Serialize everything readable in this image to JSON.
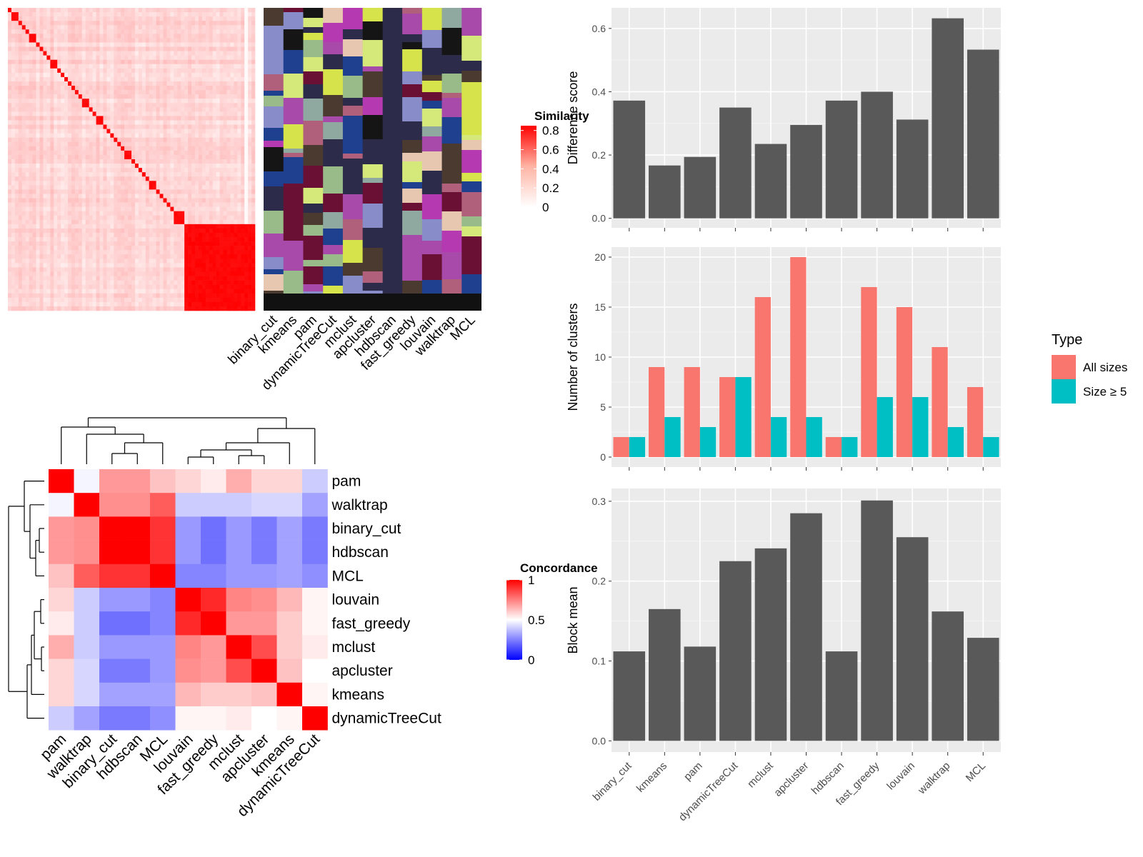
{
  "methods_order": [
    "binary_cut",
    "kmeans",
    "pam",
    "dynamicTreeCut",
    "mclust",
    "apcluster",
    "hdbscan",
    "fast_greedy",
    "louvain",
    "walktrap",
    "MCL"
  ],
  "similarity_heatmap": {
    "legend_title": "Similarity",
    "legend_ticks": [
      0.8,
      0.6,
      0.4,
      0.2,
      0
    ],
    "legend_range": [
      0,
      0.85
    ],
    "n": 70,
    "block_sizes": [
      1,
      2,
      1,
      1,
      1,
      2,
      1,
      1,
      1,
      1,
      2,
      1,
      1,
      1,
      1,
      1,
      1,
      1,
      2,
      1,
      1,
      2,
      1,
      1,
      1,
      1,
      1,
      1,
      2,
      1,
      1,
      1,
      1,
      1,
      2,
      1,
      1,
      1,
      1,
      1,
      3
    ],
    "colors": {
      "low": "#ffffff",
      "high": "#ff0000"
    }
  },
  "cluster_assignment": {
    "columns": [
      "binary_cut",
      "kmeans",
      "pam",
      "dynamicTreeCut",
      "mclust",
      "apcluster",
      "hdbscan",
      "fast_greedy",
      "louvain",
      "walktrap",
      "MCL"
    ],
    "palette": [
      "#2c2c4a",
      "#a74aa9",
      "#b0607a",
      "#1f3f8f",
      "#d6e34a",
      "#d5e87a",
      "#8fa8a0",
      "#4a3a2f",
      "#6b1035",
      "#888cc8",
      "#e8c7b0",
      "#151515",
      "#b539b0",
      "#99bb8a"
    ],
    "base_color": "#2c2c4a",
    "footer_color": "#111111"
  },
  "concordance_heatmap": {
    "legend_title": "Concordance",
    "legend_ticks": [
      1,
      0.5,
      0
    ],
    "labels": [
      "pam",
      "walktrap",
      "binary_cut",
      "hdbscan",
      "MCL",
      "louvain",
      "fast_greedy",
      "mclust",
      "apcluster",
      "kmeans",
      "dynamicTreeCut"
    ],
    "matrix": [
      [
        1.0,
        0.48,
        0.7,
        0.7,
        0.62,
        0.58,
        0.54,
        0.66,
        0.58,
        0.58,
        0.4
      ],
      [
        0.48,
        1.0,
        0.72,
        0.72,
        0.82,
        0.4,
        0.4,
        0.4,
        0.42,
        0.42,
        0.32
      ],
      [
        0.7,
        0.72,
        1.0,
        1.0,
        0.9,
        0.3,
        0.22,
        0.3,
        0.24,
        0.32,
        0.24
      ],
      [
        0.7,
        0.72,
        1.0,
        1.0,
        0.9,
        0.3,
        0.22,
        0.3,
        0.24,
        0.32,
        0.24
      ],
      [
        0.62,
        0.82,
        0.9,
        0.9,
        1.0,
        0.26,
        0.26,
        0.3,
        0.3,
        0.32,
        0.28
      ],
      [
        0.58,
        0.4,
        0.3,
        0.3,
        0.26,
        1.0,
        0.92,
        0.74,
        0.72,
        0.64,
        0.52
      ],
      [
        0.54,
        0.4,
        0.22,
        0.22,
        0.26,
        0.92,
        1.0,
        0.7,
        0.7,
        0.6,
        0.52
      ],
      [
        0.66,
        0.4,
        0.3,
        0.3,
        0.3,
        0.74,
        0.7,
        1.0,
        0.85,
        0.6,
        0.54
      ],
      [
        0.58,
        0.42,
        0.24,
        0.24,
        0.3,
        0.72,
        0.7,
        0.85,
        1.0,
        0.62,
        0.5
      ],
      [
        0.58,
        0.42,
        0.32,
        0.32,
        0.32,
        0.64,
        0.6,
        0.6,
        0.62,
        1.0,
        0.52
      ],
      [
        0.4,
        0.32,
        0.24,
        0.24,
        0.28,
        0.52,
        0.52,
        0.54,
        0.5,
        0.52,
        1.0
      ]
    ]
  },
  "chart_data": [
    {
      "type": "bar",
      "categories": [
        "binary_cut",
        "kmeans",
        "pam",
        "dynamicTreeCut",
        "mclust",
        "apcluster",
        "hdbscan",
        "fast_greedy",
        "louvain",
        "walktrap",
        "MCL"
      ],
      "values": [
        0.372,
        0.167,
        0.194,
        0.35,
        0.235,
        0.295,
        0.372,
        0.4,
        0.312,
        0.632,
        0.533
      ],
      "title": "",
      "xlabel": "",
      "ylabel": "Difference score",
      "ylim": [
        -0.03,
        0.665
      ],
      "yticks": [
        0.0,
        0.2,
        0.4,
        0.6
      ],
      "bar_color": "#595959",
      "grid": true
    },
    {
      "type": "bar",
      "categories": [
        "binary_cut",
        "kmeans",
        "pam",
        "dynamicTreeCut",
        "mclust",
        "apcluster",
        "hdbscan",
        "fast_greedy",
        "louvain",
        "walktrap",
        "MCL"
      ],
      "series": [
        {
          "name": "All sizes",
          "values": [
            2,
            9,
            9,
            8,
            16,
            20,
            2,
            17,
            15,
            11,
            7
          ],
          "color": "#f8766d"
        },
        {
          "name": "Size ≥ 5",
          "values": [
            2,
            4,
            3,
            8,
            4,
            4,
            2,
            6,
            6,
            3,
            2
          ],
          "color": "#00bfc4"
        }
      ],
      "legend_title": "Type",
      "legend_position": "right",
      "title": "",
      "xlabel": "",
      "ylabel": "Number of clusters",
      "ylim": [
        -1,
        21
      ],
      "yticks": [
        0,
        5,
        10,
        15,
        20
      ],
      "grid": true
    },
    {
      "type": "bar",
      "categories": [
        "binary_cut",
        "kmeans",
        "pam",
        "dynamicTreeCut",
        "mclust",
        "apcluster",
        "hdbscan",
        "fast_greedy",
        "louvain",
        "walktrap",
        "MCL"
      ],
      "values": [
        0.112,
        0.165,
        0.118,
        0.225,
        0.241,
        0.285,
        0.112,
        0.301,
        0.255,
        0.162,
        0.129
      ],
      "title": "",
      "xlabel": "",
      "ylabel": "Block mean",
      "ylim": [
        -0.014,
        0.316
      ],
      "yticks": [
        0.0,
        0.1,
        0.2,
        0.3
      ],
      "bar_color": "#595959",
      "grid": true
    }
  ]
}
